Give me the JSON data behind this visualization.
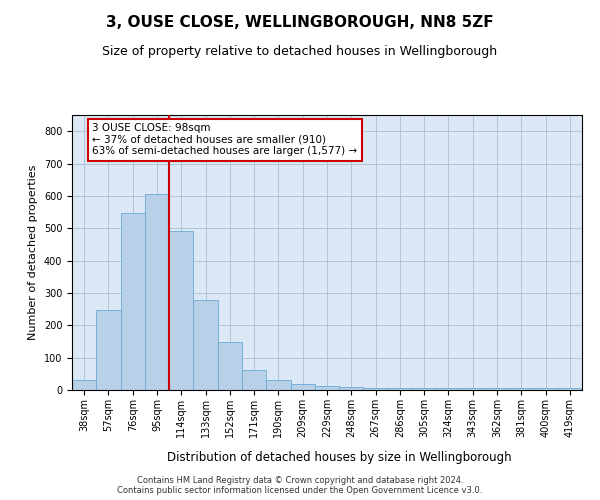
{
  "title": "3, OUSE CLOSE, WELLINGBOROUGH, NN8 5ZF",
  "subtitle": "Size of property relative to detached houses in Wellingborough",
  "xlabel": "Distribution of detached houses by size in Wellingborough",
  "ylabel": "Number of detached properties",
  "categories": [
    "38sqm",
    "57sqm",
    "76sqm",
    "95sqm",
    "114sqm",
    "133sqm",
    "152sqm",
    "171sqm",
    "190sqm",
    "209sqm",
    "229sqm",
    "248sqm",
    "267sqm",
    "286sqm",
    "305sqm",
    "324sqm",
    "343sqm",
    "362sqm",
    "381sqm",
    "400sqm",
    "419sqm"
  ],
  "values": [
    30,
    247,
    548,
    605,
    493,
    277,
    148,
    63,
    30,
    18,
    12,
    10,
    7,
    5,
    5,
    5,
    5,
    5,
    5,
    5,
    5
  ],
  "bar_color": "#b8d0e8",
  "bar_edge_color": "#6aaad4",
  "property_line_x": 3.5,
  "property_line_color": "#cc0000",
  "annotation_text": "3 OUSE CLOSE: 98sqm\n← 37% of detached houses are smaller (910)\n63% of semi-detached houses are larger (1,577) →",
  "annotation_box_color": "#ffffff",
  "annotation_box_edge_color": "#cc0000",
  "ylim": [
    0,
    850
  ],
  "yticks": [
    0,
    100,
    200,
    300,
    400,
    500,
    600,
    700,
    800
  ],
  "title_fontsize": 11,
  "subtitle_fontsize": 9,
  "xlabel_fontsize": 8.5,
  "ylabel_fontsize": 8,
  "tick_fontsize": 7,
  "annotation_fontsize": 7.5,
  "footer_text": "Contains HM Land Registry data © Crown copyright and database right 2024.\nContains public sector information licensed under the Open Government Licence v3.0.",
  "background_color": "#ffffff",
  "ax_background_color": "#dce8f5",
  "grid_color": "#b0c4d8"
}
